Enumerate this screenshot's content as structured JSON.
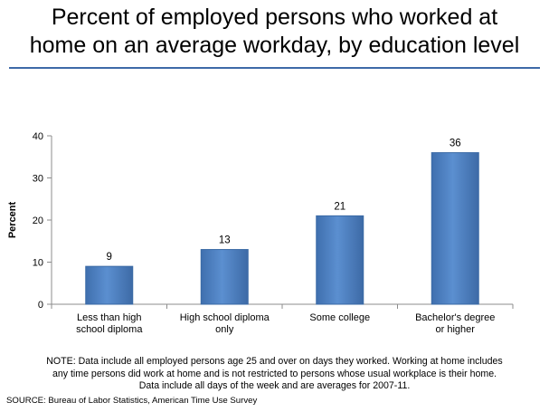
{
  "title_lines": [
    "Percent of employed persons who worked at",
    "home on an average workday, by education level"
  ],
  "chart_data": {
    "type": "bar",
    "categories": [
      [
        "Less than high",
        "school diploma"
      ],
      [
        "High school diploma",
        "only"
      ],
      [
        "Some college"
      ],
      [
        "Bachelor's degree",
        "or higher"
      ]
    ],
    "values": [
      9,
      13,
      21,
      36
    ],
    "data_labels": [
      "9",
      "13",
      "21",
      "36"
    ],
    "title": "",
    "xlabel": "",
    "ylabel": "Percent",
    "ylim": [
      0,
      40
    ],
    "yticks": [
      0,
      10,
      20,
      30,
      40
    ],
    "grid": false,
    "bar_color": "#4f81bd",
    "bar_edge_color": "#3a6aa5"
  },
  "note_lines": [
    "NOTE: Data include all employed persons age 25 and over on days they worked. Working at home includes",
    "any time persons did work at home and is not restricted to persons whose usual workplace is their home.",
    "Data include all days of the week and are averages for 2007-11."
  ],
  "source": "SOURCE: Bureau of Labor Statistics, American Time Use Survey",
  "colors": {
    "rule": "#3e6aa8",
    "bar": "#4f81bd",
    "axis": "#8c8c8c"
  }
}
